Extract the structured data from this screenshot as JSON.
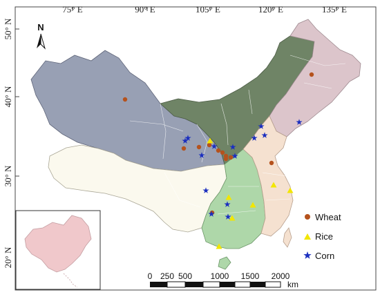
{
  "map": {
    "top_ticks": [
      "75° E",
      "90° E",
      "105° E",
      "120° E",
      "135° E"
    ],
    "left_ticks": [
      "50° N",
      "40° N",
      "30° N",
      "20° N"
    ],
    "north_label": "N",
    "legend": [
      {
        "key": "wheat",
        "label": "Wheat",
        "symbol": "circle",
        "color": "#b5521d"
      },
      {
        "key": "rice",
        "label": "Rice",
        "symbol": "triangle",
        "color": "#f2e600"
      },
      {
        "key": "corn",
        "label": "Corn",
        "symbol": "star",
        "color": "#1b2fbf"
      }
    ],
    "scale_bar": {
      "ticks": [
        "0",
        "250",
        "500",
        "1000",
        "1500",
        "2000"
      ],
      "unit": "km"
    },
    "region_colors": {
      "northwest": "#98a0b4",
      "north": "#6f8466",
      "northeast": "#dcc5cb",
      "southwest": "#fbf9ee",
      "central_south": "#aed7a9",
      "east": "#f5e1d0",
      "inset": "#f0c8cb"
    }
  }
}
